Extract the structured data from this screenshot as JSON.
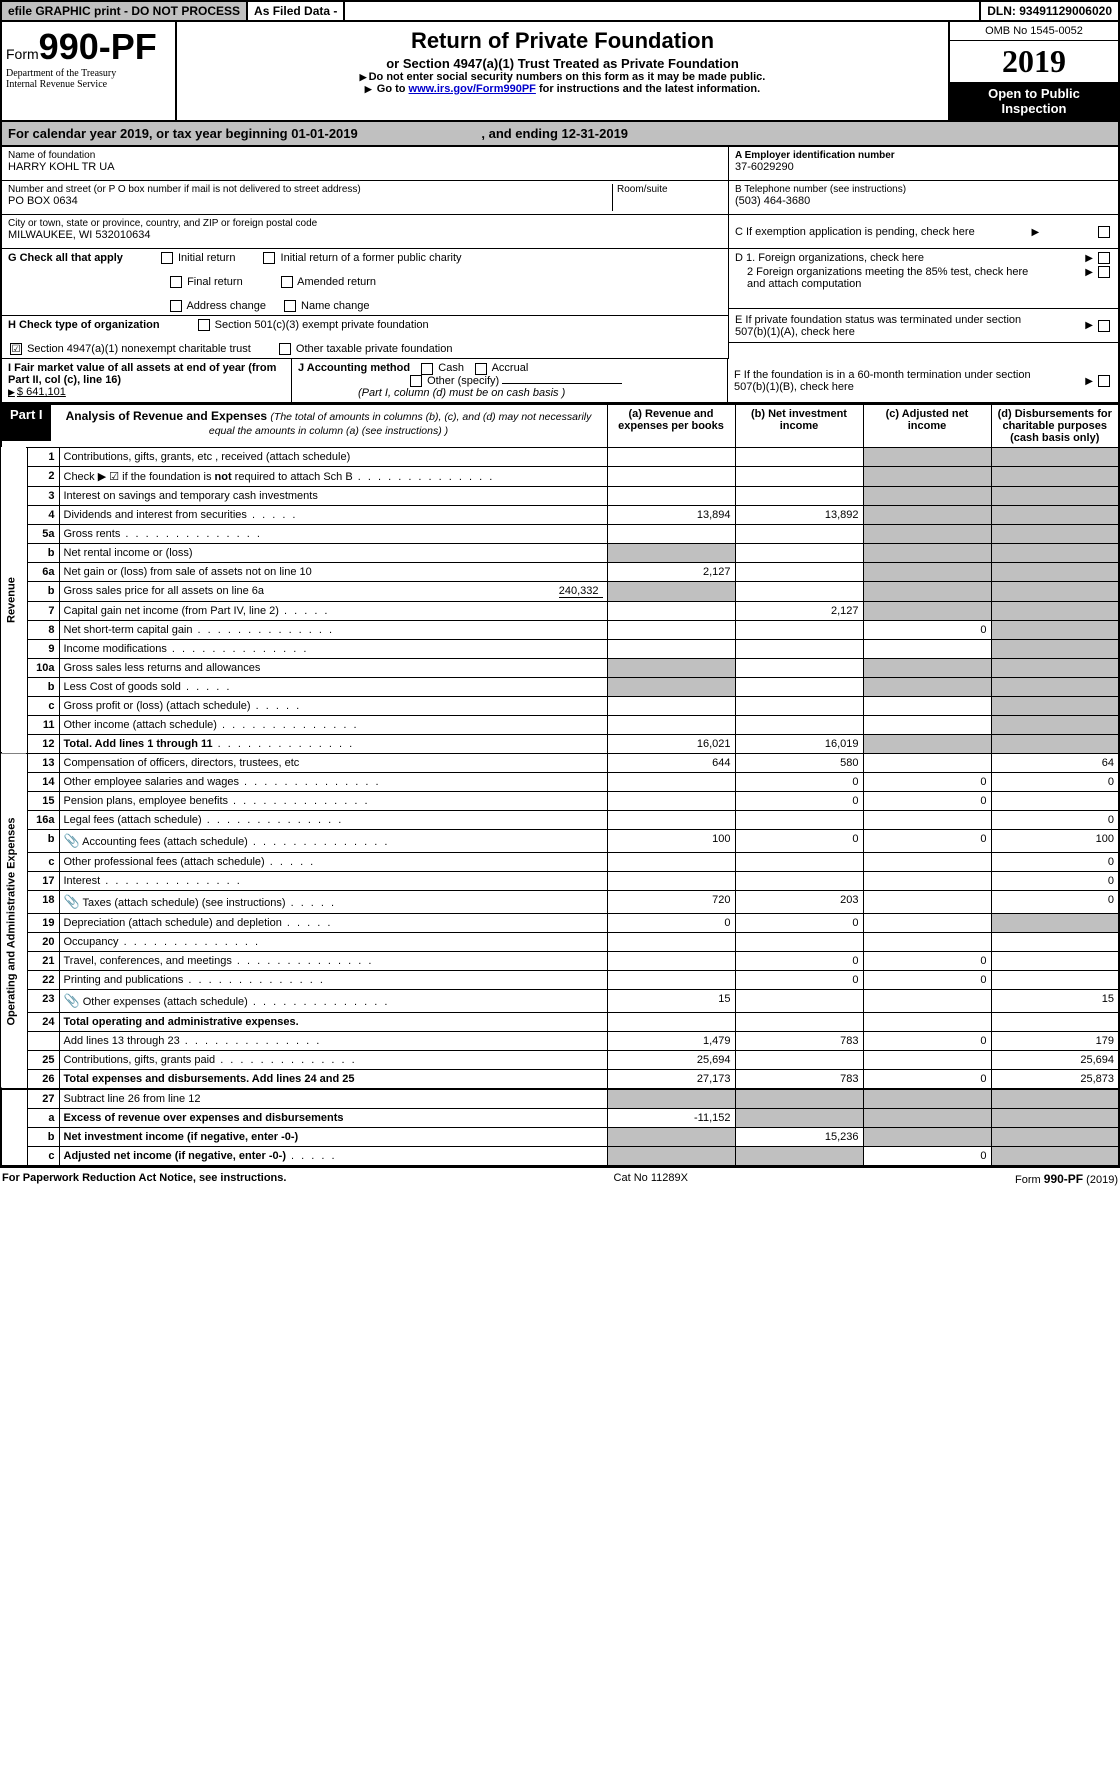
{
  "topbar": {
    "efile": "efile GRAPHIC print - DO NOT PROCESS",
    "asfiled": "As Filed Data -",
    "dln_label": "DLN:",
    "dln": "93491129006020"
  },
  "header": {
    "form_prefix": "Form",
    "form_num": "990-PF",
    "dept1": "Department of the Treasury",
    "dept2": "Internal Revenue Service",
    "title": "Return of Private Foundation",
    "subtitle": "or Section 4947(a)(1) Trust Treated as Private Foundation",
    "note1": "Do not enter social security numbers on this form as it may be made public.",
    "note2_pre": "Go to ",
    "note2_link": "www.irs.gov/Form990PF",
    "note2_post": " for instructions and the latest information.",
    "omb": "OMB No 1545-0052",
    "year": "2019",
    "open": "Open to Public Inspection"
  },
  "calyear": {
    "text_pre": "For calendar year 2019, or tax year beginning ",
    "begin": "01-01-2019",
    "mid": " , and ending ",
    "end": "12-31-2019"
  },
  "info": {
    "name_lbl": "Name of foundation",
    "name": "HARRY KOHL TR UA",
    "ein_lbl": "A Employer identification number",
    "ein": "37-6029290",
    "addr_lbl": "Number and street (or P O  box number if mail is not delivered to street address)",
    "addr": "PO BOX 0634",
    "room_lbl": "Room/suite",
    "tel_lbl": "B Telephone number (see instructions)",
    "tel": "(503) 464-3680",
    "city_lbl": "City or town, state or province, country, and ZIP or foreign postal code",
    "city": "MILWAUKEE, WI  532010634",
    "c_lbl": "C If exemption application is pending, check here",
    "g_lbl": "G Check all that apply",
    "g_opts": [
      "Initial return",
      "Initial return of a former public charity",
      "Final return",
      "Amended return",
      "Address change",
      "Name change"
    ],
    "d1": "D 1. Foreign organizations, check here",
    "d2": "2  Foreign organizations meeting the 85% test, check here and attach computation",
    "e": "E  If private foundation status was terminated under section 507(b)(1)(A), check here",
    "h_lbl": "H Check type of organization",
    "h_opt1": "Section 501(c)(3) exempt private foundation",
    "h_opt2": "Section 4947(a)(1) nonexempt charitable trust",
    "h_opt3": "Other taxable private foundation",
    "i_lbl": "I Fair market value of all assets at end of year (from Part II, col  (c), line 16)",
    "i_val": "$  641,101",
    "j_lbl": "J Accounting method",
    "j_cash": "Cash",
    "j_accrual": "Accrual",
    "j_other": "Other (specify)",
    "j_note": "(Part I, column (d) must be on cash basis )",
    "f": "F  If the foundation is in a 60-month termination under section 507(b)(1)(B), check here"
  },
  "part1": {
    "label": "Part I",
    "title": "Analysis of Revenue and Expenses",
    "title_note": "(The total of amounts in columns (b), (c), and (d) may not necessarily equal the amounts in column (a) (see instructions) )",
    "col_a": "(a)  Revenue and expenses per books",
    "col_b": "(b) Net investment income",
    "col_c": "(c) Adjusted net income",
    "col_d": "(d) Disbursements for charitable purposes (cash basis only)",
    "side_rev": "Revenue",
    "side_exp": "Operating and Administrative Expenses"
  },
  "rows": [
    {
      "n": "1",
      "d": "Contributions, gifts, grants, etc , received (attach schedule)"
    },
    {
      "n": "2",
      "d": "Check ▶ ☑ if the foundation is not required to attach Sch  B",
      "dots": true,
      "not": true
    },
    {
      "n": "3",
      "d": "Interest on savings and temporary cash investments"
    },
    {
      "n": "4",
      "d": "Dividends and interest from securities",
      "dots_sm": true,
      "a": "13,894",
      "b": "13,892"
    },
    {
      "n": "5a",
      "d": "Gross rents",
      "dots": true
    },
    {
      "n": "b",
      "d": "Net rental income or (loss)",
      "underline": true
    },
    {
      "n": "6a",
      "d": "Net gain or (loss) from sale of assets not on line 10",
      "a": "2,127"
    },
    {
      "n": "b",
      "d": "Gross sales price for all assets on line 6a",
      "inline": "240,332"
    },
    {
      "n": "7",
      "d": "Capital gain net income (from Part IV, line 2)",
      "dots_sm": true,
      "b": "2,127"
    },
    {
      "n": "8",
      "d": "Net short-term capital gain",
      "dots": true,
      "c": "0"
    },
    {
      "n": "9",
      "d": "Income modifications",
      "dots": true
    },
    {
      "n": "10a",
      "d": "Gross sales less returns and allowances",
      "box": true
    },
    {
      "n": "b",
      "d": "Less  Cost of goods sold",
      "dots_sm": true,
      "box": true
    },
    {
      "n": "c",
      "d": "Gross profit or (loss) (attach schedule)",
      "dots_sm": true
    },
    {
      "n": "11",
      "d": "Other income (attach schedule)",
      "dots": true
    },
    {
      "n": "12",
      "d": "Total. Add lines 1 through 11",
      "dots": true,
      "bold": true,
      "a": "16,021",
      "b": "16,019"
    }
  ],
  "exp_rows": [
    {
      "n": "13",
      "d": "Compensation of officers, directors, trustees, etc",
      "a": "644",
      "b": "580",
      "d4": "64"
    },
    {
      "n": "14",
      "d": "Other employee salaries and wages",
      "dots": true,
      "b": "0",
      "c": "0",
      "d4": "0"
    },
    {
      "n": "15",
      "d": "Pension plans, employee benefits",
      "dots": true,
      "b": "0",
      "c": "0"
    },
    {
      "n": "16a",
      "d": "Legal fees (attach schedule)",
      "dots": true,
      "d4": "0"
    },
    {
      "n": "b",
      "d": "Accounting fees (attach schedule)",
      "dots": true,
      "icon": true,
      "a": "100",
      "b": "0",
      "c": "0",
      "d4": "100"
    },
    {
      "n": "c",
      "d": "Other professional fees (attach schedule)",
      "dots_sm": true,
      "d4": "0"
    },
    {
      "n": "17",
      "d": "Interest",
      "dots": true,
      "d4": "0"
    },
    {
      "n": "18",
      "d": "Taxes (attach schedule) (see instructions)",
      "dots_sm": true,
      "icon": true,
      "a": "720",
      "b": "203",
      "d4": "0"
    },
    {
      "n": "19",
      "d": "Depreciation (attach schedule) and depletion",
      "dots_sm": true,
      "a": "0",
      "b": "0"
    },
    {
      "n": "20",
      "d": "Occupancy",
      "dots": true
    },
    {
      "n": "21",
      "d": "Travel, conferences, and meetings",
      "dots": true,
      "b": "0",
      "c": "0"
    },
    {
      "n": "22",
      "d": "Printing and publications",
      "dots": true,
      "b": "0",
      "c": "0"
    },
    {
      "n": "23",
      "d": "Other expenses (attach schedule)",
      "dots": true,
      "icon": true,
      "a": "15",
      "d4": "15"
    },
    {
      "n": "24",
      "d": "Total operating and administrative expenses.",
      "bold": true
    },
    {
      "n": "",
      "d": "Add lines 13 through 23",
      "dots": true,
      "a": "1,479",
      "b": "783",
      "c": "0",
      "d4": "179"
    },
    {
      "n": "25",
      "d": "Contributions, gifts, grants paid",
      "dots": true,
      "a": "25,694",
      "d4": "25,694"
    },
    {
      "n": "26",
      "d": "Total expenses and disbursements. Add lines 24 and 25",
      "bold": true,
      "a": "27,173",
      "b": "783",
      "c": "0",
      "d4": "25,873"
    }
  ],
  "net_rows": [
    {
      "n": "27",
      "d": "Subtract line 26 from line 12"
    },
    {
      "n": "a",
      "d": "Excess of revenue over expenses and disbursements",
      "bold": true,
      "a": "-11,152"
    },
    {
      "n": "b",
      "d": "Net investment income (if negative, enter -0-)",
      "bold": true,
      "b": "15,236"
    },
    {
      "n": "c",
      "d": "Adjusted net income (if negative, enter -0-)",
      "bold": true,
      "dots_sm": true,
      "c": "0"
    }
  ],
  "footer": {
    "left": "For Paperwork Reduction Act Notice, see instructions.",
    "mid": "Cat  No  11289X",
    "right_pre": "Form ",
    "right_form": "990-PF",
    "right_post": " (2019)"
  },
  "colors": {
    "grey": "#c0c0c0",
    "black": "#000000",
    "link": "#0000cc"
  }
}
